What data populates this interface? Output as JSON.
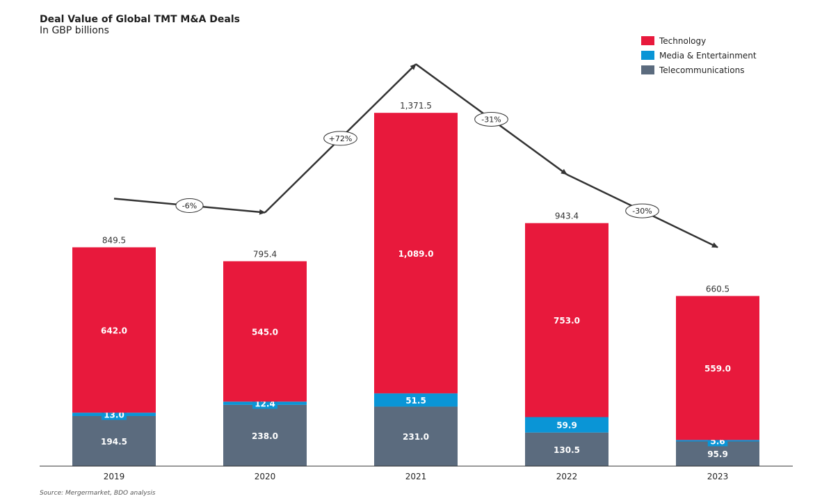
{
  "chart_data": {
    "type": "bar",
    "stacked": true,
    "title": "Deal Value of Global TMT M&A Deals",
    "subtitle": "In GBP billions",
    "source": "Source: Mergermarket, BDO analysis",
    "categories": [
      "2019",
      "2020",
      "2021",
      "2022",
      "2023"
    ],
    "series": [
      {
        "name": "Telecommunications",
        "color": "#5b6b7e",
        "values": [
          194.5,
          238.0,
          231.0,
          130.5,
          95.9
        ],
        "labels": [
          "194.5",
          "238.0",
          "231.0",
          "130.5",
          "95.9"
        ]
      },
      {
        "name": "Media & Entertainment",
        "color": "#0a95d6",
        "values": [
          13.0,
          12.4,
          51.5,
          59.9,
          5.6
        ],
        "labels": [
          "13.0",
          "12.4",
          "51.5",
          "59.9",
          "5.6"
        ]
      },
      {
        "name": "Technology",
        "color": "#e8193c",
        "values": [
          642.0,
          545.0,
          1089.0,
          753.0,
          559.0
        ],
        "labels": [
          "642.0",
          "545.0",
          "1,089.0",
          "753.0",
          "559.0"
        ]
      }
    ],
    "totals": [
      "849.5",
      "795.4",
      "1,371.5",
      "943.4",
      "660.5"
    ],
    "legend_order": [
      "Technology",
      "Media & Entertainment",
      "Telecommunications"
    ],
    "legend_position": "top-right",
    "ylim": [
      0,
      1372
    ],
    "grid": false,
    "trend_changes": [
      "-6%",
      "+72%",
      "-31%",
      "-30%"
    ]
  }
}
